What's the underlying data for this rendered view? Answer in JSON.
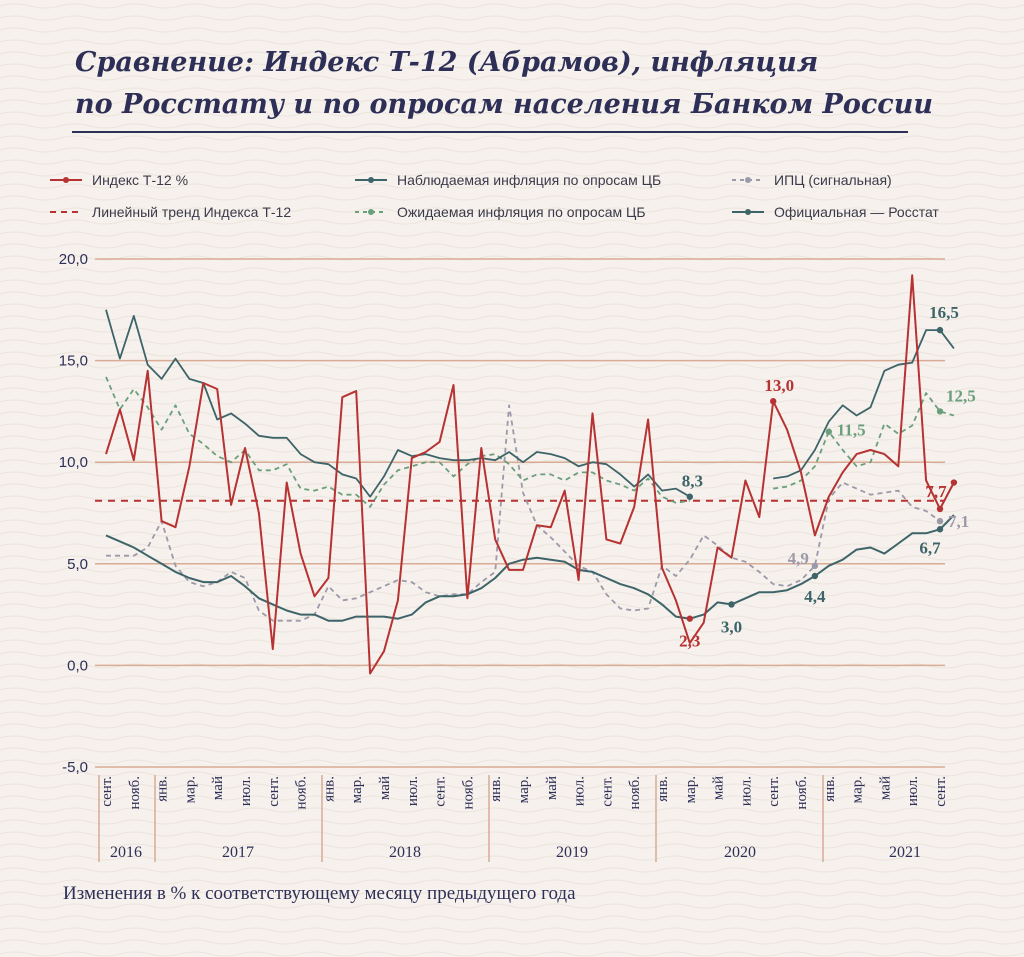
{
  "title_line1": "Сравнение: Индекс Т-12 (Абрамов), инфляция",
  "title_line2": "по Росстату и по опросам населения Банком России",
  "footnote": "Изменения в % к соответствующему месяцу предыдущего года",
  "colors": {
    "red": "#b73232",
    "teal": "#3d6468",
    "green": "#6a9f7c",
    "gray": "#9c99aa",
    "navy": "#2e2f57",
    "grid": "#d8ab94"
  },
  "chart_data": {
    "type": "line",
    "ylim": [
      -5,
      20
    ],
    "yticks": [
      "20,0",
      "15,0",
      "10,0",
      "5,0",
      "0,0",
      "-5,0"
    ],
    "ytick_values": [
      20,
      15,
      10,
      5,
      0,
      -5
    ],
    "month_labels": [
      "сент.",
      "нояб.",
      "янв.",
      "мар.",
      "май",
      "июл.",
      "сент.",
      "нояб.",
      "янв.",
      "мар.",
      "май",
      "июл.",
      "сент.",
      "нояб.",
      "янв.",
      "мар.",
      "май",
      "июл.",
      "сент.",
      "нояб.",
      "янв.",
      "мар.",
      "май",
      "июл.",
      "сент.",
      "нояб.",
      "янв.",
      "мар.",
      "май",
      "июл.",
      "сент."
    ],
    "years": [
      "2016",
      "2017",
      "2018",
      "2019",
      "2020",
      "2021"
    ],
    "legend": [
      "Индекс Т-12 %",
      "Наблюдаемая инфляция по опросам ЦБ",
      "ИПЦ (сигнальная)",
      "Линейный тренд Индекса Т-12",
      "Ожидаемая инфляция по опросам ЦБ",
      "Официальная — Росстат"
    ],
    "trend_value": 8.1,
    "series": [
      {
        "name": "Индекс Т-12 %",
        "values": [
          10.4,
          12.6,
          10.1,
          14.5,
          7.1,
          6.8,
          9.8,
          13.9,
          13.6,
          7.9,
          10.7,
          7.5,
          0.8,
          9.0,
          5.5,
          3.4,
          4.3,
          13.2,
          13.5,
          -0.4,
          0.7,
          3.2,
          10.2,
          10.5,
          11.0,
          13.8,
          3.3,
          10.7,
          6.2,
          4.7,
          4.7,
          6.9,
          6.8,
          8.6,
          4.2,
          12.4,
          6.2,
          6.0,
          7.8,
          12.1,
          4.8,
          3.2,
          1.1,
          2.1,
          5.8,
          5.3,
          9.1,
          7.3,
          13.0,
          11.6,
          9.5,
          6.4,
          8.3,
          9.5,
          10.4,
          10.6,
          10.4,
          9.8,
          19.2,
          9.1,
          7.7,
          9.0
        ]
      },
      {
        "name": "Наблюдаемая инфляция по опросам ЦБ",
        "values": [
          17.5,
          15.1,
          17.2,
          14.8,
          14.1,
          15.1,
          14.1,
          13.9,
          12.1,
          12.4,
          11.9,
          11.3,
          11.2,
          11.2,
          10.4,
          10.0,
          9.9,
          9.4,
          9.2,
          8.3,
          9.3,
          10.6,
          10.3,
          10.4,
          10.2,
          10.1,
          10.1,
          10.2,
          10.1,
          10.5,
          10.0,
          10.5,
          10.4,
          10.2,
          9.8,
          10.0,
          9.9,
          9.4,
          8.8,
          9.4,
          8.6,
          8.7,
          8.3,
          null,
          null,
          null,
          null,
          null,
          9.2,
          9.3,
          9.6,
          10.6,
          12.0,
          12.8,
          12.3,
          12.7,
          14.5,
          14.8,
          14.9,
          16.5,
          16.5,
          15.6
        ]
      },
      {
        "name": "Ожидаемая инфляция по опросам ЦБ",
        "values": [
          14.2,
          12.6,
          13.6,
          12.7,
          11.6,
          12.8,
          11.4,
          10.9,
          10.3,
          10.0,
          10.6,
          9.6,
          9.6,
          9.9,
          8.7,
          8.6,
          8.8,
          8.4,
          8.4,
          7.8,
          8.9,
          9.6,
          9.8,
          10.0,
          10.0,
          9.3,
          9.9,
          10.3,
          10.4,
          9.9,
          9.1,
          9.4,
          9.4,
          9.1,
          9.5,
          9.5,
          9.1,
          8.9,
          8.6,
          9.2,
          8.3,
          8.0,
          8.1,
          null,
          null,
          null,
          null,
          null,
          8.7,
          8.8,
          9.1,
          9.8,
          11.5,
          10.6,
          9.8,
          10.0,
          11.9,
          11.4,
          11.8,
          13.4,
          12.5,
          12.3
        ]
      },
      {
        "name": "ИПЦ (сигнальная)",
        "values": [
          5.4,
          5.4,
          5.4,
          5.8,
          7.1,
          4.9,
          4.1,
          3.9,
          4.1,
          4.6,
          4.3,
          2.7,
          2.2,
          2.2,
          2.2,
          2.5,
          3.9,
          3.2,
          3.3,
          3.6,
          3.9,
          4.2,
          4.1,
          3.6,
          3.4,
          3.5,
          3.5,
          4.1,
          4.6,
          12.8,
          8.5,
          6.9,
          6.3,
          5.6,
          4.9,
          4.6,
          3.5,
          2.8,
          2.7,
          2.8,
          4.9,
          4.4,
          5.2,
          6.4,
          5.9,
          5.3,
          5.1,
          4.6,
          4.0,
          3.9,
          4.2,
          4.9,
          8.2,
          9.0,
          8.7,
          8.4,
          8.5,
          8.6,
          7.8,
          7.6,
          7.1,
          null
        ]
      },
      {
        "name": "Официальная — Росстат",
        "values": [
          6.4,
          6.1,
          5.8,
          5.4,
          5.0,
          4.6,
          4.3,
          4.1,
          4.1,
          4.4,
          3.9,
          3.3,
          3.0,
          2.7,
          2.5,
          2.5,
          2.2,
          2.2,
          2.4,
          2.4,
          2.4,
          2.3,
          2.5,
          3.1,
          3.4,
          3.4,
          3.5,
          3.8,
          4.3,
          5.0,
          5.2,
          5.3,
          5.2,
          5.1,
          4.7,
          4.6,
          4.3,
          4.0,
          3.8,
          3.5,
          3.0,
          2.4,
          2.3,
          2.5,
          3.1,
          3.0,
          3.3,
          3.6,
          3.6,
          3.7,
          4.0,
          4.4,
          4.9,
          5.2,
          5.7,
          5.8,
          5.5,
          6.0,
          6.5,
          6.5,
          6.7,
          7.4
        ]
      }
    ],
    "annotations": [
      {
        "text": "8,3",
        "series": 1,
        "index": 42,
        "color": "teal"
      },
      {
        "text": "2,3",
        "series": 4,
        "index": 42,
        "color": "red"
      },
      {
        "text": "3,0",
        "series": 4,
        "index": 45,
        "color": "teal"
      },
      {
        "text": "13,0",
        "series": 0,
        "index": 48,
        "color": "red"
      },
      {
        "text": "4,9",
        "series": 3,
        "index": 51,
        "color": "gray"
      },
      {
        "text": "4,4",
        "series": 4,
        "index": 51,
        "color": "teal"
      },
      {
        "text": "11,5",
        "series": 2,
        "index": 52,
        "color": "green"
      },
      {
        "text": "16,5",
        "series": 1,
        "index": 60,
        "color": "teal"
      },
      {
        "text": "12,5",
        "series": 2,
        "index": 60,
        "color": "green"
      },
      {
        "text": "7,7",
        "series": 0,
        "index": 60,
        "color": "red"
      },
      {
        "text": "6,7",
        "series": 4,
        "index": 60,
        "color": "teal"
      },
      {
        "text": "7,1",
        "series": 3,
        "index": 60,
        "color": "gray"
      }
    ]
  }
}
